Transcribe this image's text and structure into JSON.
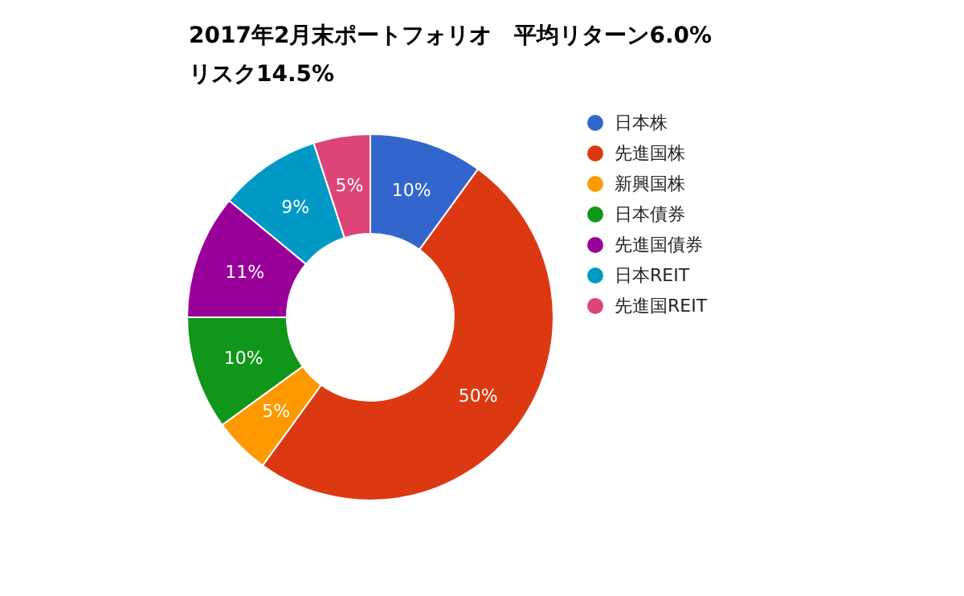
{
  "chart_data": {
    "type": "donut",
    "title": "2017年2月末ポートフォリオ　平均リターン6.0%　リスク14.5%",
    "categories": [
      "日本株",
      "先進国株",
      "新興国株",
      "日本債券",
      "先進国債券",
      "日本REIT",
      "先進国REIT"
    ],
    "values": [
      10,
      50,
      5,
      10,
      11,
      9,
      5
    ],
    "colors": [
      "#3366cc",
      "#dc3912",
      "#ff9900",
      "#109618",
      "#990099",
      "#0099c6",
      "#dd4477"
    ],
    "value_labels": [
      "10%",
      "50%",
      "5%",
      "10%",
      "11%",
      "9%",
      "5%"
    ],
    "legend": "right"
  }
}
